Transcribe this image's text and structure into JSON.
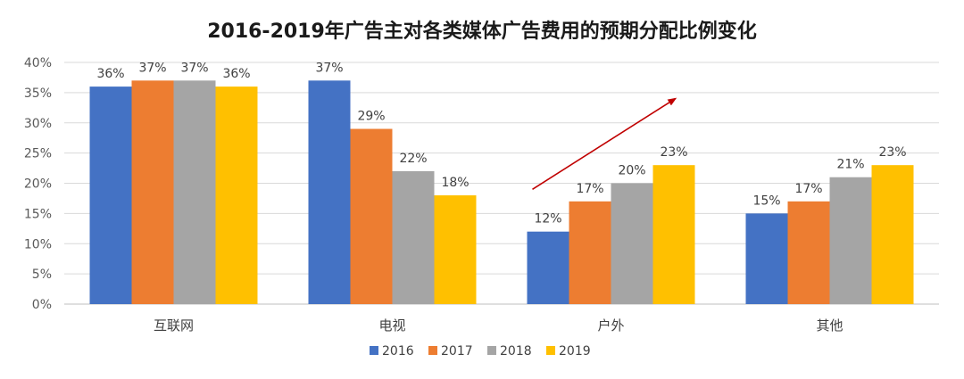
{
  "chart_data": {
    "type": "bar",
    "title": "2016-2019年广告主对各类媒体广告费用的预期分配比例变化",
    "categories": [
      "互联网",
      "电视",
      "户外",
      "其他"
    ],
    "series": [
      {
        "name": "2016",
        "color": "#4472C4",
        "values": [
          36,
          37,
          12,
          15
        ]
      },
      {
        "name": "2017",
        "color": "#ED7D31",
        "values": [
          37,
          29,
          17,
          17
        ]
      },
      {
        "name": "2018",
        "color": "#A5A5A5",
        "values": [
          37,
          22,
          20,
          21
        ]
      },
      {
        "name": "2019",
        "color": "#FFC000",
        "values": [
          36,
          18,
          23,
          23
        ]
      }
    ],
    "value_suffix": "%",
    "ylim": [
      0,
      40
    ],
    "yticks": [
      0,
      5,
      10,
      15,
      20,
      25,
      30,
      35,
      40
    ],
    "ytick_labels": [
      "0%",
      "5%",
      "10%",
      "15%",
      "20%",
      "25%",
      "30%",
      "35%",
      "40%"
    ],
    "grid": true,
    "legend_position": "bottom",
    "annotation": {
      "type": "arrow",
      "color": "#C00000",
      "category": "户外",
      "from_value": 19,
      "to_value": 34
    }
  }
}
